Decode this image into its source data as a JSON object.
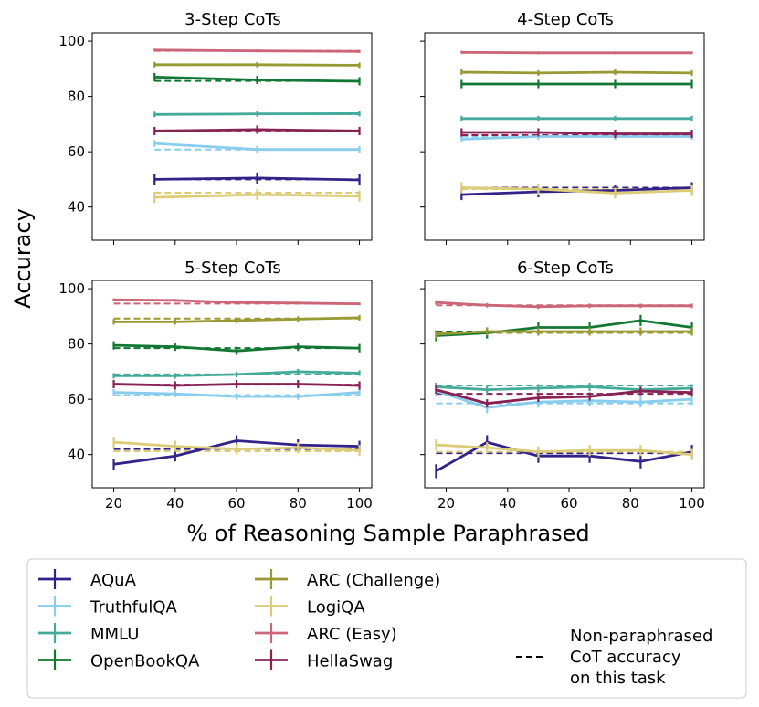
{
  "chart_data": {
    "type": "line",
    "xlabel": "% of Reasoning Sample Paraphrased",
    "ylabel": "Accuracy",
    "ylim": [
      28,
      103
    ],
    "yticks": [
      40,
      60,
      80,
      100
    ],
    "xticks": [
      20,
      40,
      60,
      80,
      100
    ],
    "series_meta": [
      {
        "name": "AQuA",
        "color": "#332288"
      },
      {
        "name": "TruthfulQA",
        "color": "#88CCEE"
      },
      {
        "name": "MMLU",
        "color": "#44AA99"
      },
      {
        "name": "OpenBookQA",
        "color": "#117733"
      },
      {
        "name": "ARC (Challenge)",
        "color": "#999933"
      },
      {
        "name": "LogiQA",
        "color": "#DDCC77"
      },
      {
        "name": "ARC (Easy)",
        "color": "#CC6677"
      },
      {
        "name": "HellaSwag",
        "color": "#882255"
      }
    ],
    "legend_note": [
      "Non-paraphrased",
      "CoT accuracy",
      "on this task"
    ],
    "panels": [
      {
        "title": "3-Step CoTs",
        "x": [
          33.3,
          66.7,
          100
        ],
        "series": [
          {
            "name": "AQuA",
            "values": [
              50.0,
              50.5,
              49.8
            ],
            "baseline": 50.0,
            "err": 2
          },
          {
            "name": "TruthfulQA",
            "values": [
              63.0,
              60.8,
              60.8
            ],
            "baseline": 60.8,
            "err": 1.2
          },
          {
            "name": "MMLU",
            "values": [
              73.5,
              73.7,
              73.8
            ],
            "baseline": 73.6,
            "err": 1
          },
          {
            "name": "OpenBookQA",
            "values": [
              87.0,
              86.0,
              85.5
            ],
            "baseline": 85.6,
            "err": 1.5
          },
          {
            "name": "ARC (Challenge)",
            "values": [
              91.5,
              91.5,
              91.3
            ],
            "baseline": 91.4,
            "err": 1
          },
          {
            "name": "LogiQA",
            "values": [
              43.5,
              44.5,
              44.0
            ],
            "baseline": 45.2,
            "err": 2
          },
          {
            "name": "ARC (Easy)",
            "values": [
              96.8,
              96.5,
              96.3
            ],
            "baseline": 96.5,
            "err": 0.5
          },
          {
            "name": "HellaSwag",
            "values": [
              67.5,
              68.0,
              67.5
            ],
            "baseline": 67.7,
            "err": 1.5
          }
        ]
      },
      {
        "title": "4-Step CoTs",
        "x": [
          25,
          50,
          75,
          100
        ],
        "series": [
          {
            "name": "AQuA",
            "values": [
              44.5,
              45.5,
              46.0,
              47.0
            ],
            "baseline": 47.0,
            "err": 2
          },
          {
            "name": "TruthfulQA",
            "values": [
              64.5,
              65.5,
              65.5,
              65.5
            ],
            "baseline": 65.5,
            "err": 1.2
          },
          {
            "name": "MMLU",
            "values": [
              72.0,
              72.0,
              72.0,
              72.0
            ],
            "baseline": 72.0,
            "err": 1
          },
          {
            "name": "OpenBookQA",
            "values": [
              84.5,
              84.5,
              84.5,
              84.5
            ],
            "baseline": 84.5,
            "err": 1.5
          },
          {
            "name": "ARC (Challenge)",
            "values": [
              88.8,
              88.5,
              88.8,
              88.5
            ],
            "baseline": 88.6,
            "err": 1
          },
          {
            "name": "LogiQA",
            "values": [
              47.0,
              46.5,
              45.0,
              46.0
            ],
            "baseline": 46.5,
            "err": 2
          },
          {
            "name": "ARC (Easy)",
            "values": [
              96.0,
              95.8,
              95.8,
              95.8
            ],
            "baseline": 95.8,
            "err": 0.5
          },
          {
            "name": "HellaSwag",
            "values": [
              67.0,
              67.0,
              66.5,
              66.5
            ],
            "baseline": 66.0,
            "err": 1.5
          }
        ]
      },
      {
        "title": "5-Step CoTs",
        "x": [
          20,
          40,
          60,
          80,
          100
        ],
        "series": [
          {
            "name": "AQuA",
            "values": [
              36.5,
              39.5,
              45.0,
              43.5,
              43.0
            ],
            "baseline": 42.0,
            "err": 2
          },
          {
            "name": "TruthfulQA",
            "values": [
              62.5,
              62.0,
              61.0,
              61.0,
              62.5
            ],
            "baseline": 61.5,
            "err": 1.2
          },
          {
            "name": "MMLU",
            "values": [
              68.5,
              68.5,
              69.0,
              70.0,
              69.5
            ],
            "baseline": 69.0,
            "err": 1
          },
          {
            "name": "OpenBookQA",
            "values": [
              79.5,
              79.0,
              77.5,
              79.0,
              78.5
            ],
            "baseline": 78.5,
            "err": 1.5
          },
          {
            "name": "ARC (Challenge)",
            "values": [
              88.0,
              88.0,
              88.5,
              89.0,
              89.5
            ],
            "baseline": 89.2,
            "err": 1
          },
          {
            "name": "LogiQA",
            "values": [
              44.5,
              43.0,
              42.0,
              42.5,
              41.5
            ],
            "baseline": 41.2,
            "err": 2
          },
          {
            "name": "ARC (Easy)",
            "values": [
              96.0,
              95.8,
              95.0,
              94.8,
              94.5
            ],
            "baseline": 94.6,
            "err": 0.5
          },
          {
            "name": "HellaSwag",
            "values": [
              65.5,
              65.0,
              65.5,
              65.5,
              65.0
            ],
            "baseline": 65.3,
            "err": 1.5
          }
        ]
      },
      {
        "title": "6-Step CoTs",
        "x": [
          16.7,
          33.3,
          50,
          66.7,
          83.3,
          100
        ],
        "series": [
          {
            "name": "AQuA",
            "values": [
              34.0,
              44.5,
              39.5,
              39.5,
              37.5,
              41.0
            ],
            "baseline": 40.5,
            "err": 2.5
          },
          {
            "name": "TruthfulQA",
            "values": [
              63.0,
              57.0,
              59.0,
              59.5,
              59.0,
              60.0
            ],
            "baseline": 58.5,
            "err": 2
          },
          {
            "name": "MMLU",
            "values": [
              64.5,
              63.5,
              64.0,
              64.5,
              63.5,
              64.0
            ],
            "baseline": 65.0,
            "err": 1.5
          },
          {
            "name": "OpenBookQA",
            "values": [
              83.0,
              84.0,
              86.0,
              86.0,
              88.5,
              86.0
            ],
            "baseline": 84.5,
            "err": 2
          },
          {
            "name": "ARC (Challenge)",
            "values": [
              83.5,
              84.5,
              84.5,
              84.5,
              84.5,
              84.5
            ],
            "baseline": 84.0,
            "err": 1.5
          },
          {
            "name": "LogiQA",
            "values": [
              43.5,
              42.5,
              41.0,
              41.5,
              41.5,
              40.0
            ],
            "baseline": 41.0,
            "err": 2
          },
          {
            "name": "ARC (Easy)",
            "values": [
              95.0,
              94.0,
              93.5,
              93.8,
              93.8,
              93.8
            ],
            "baseline": 94.0,
            "err": 0.8
          },
          {
            "name": "HellaSwag",
            "values": [
              63.5,
              58.5,
              60.5,
              61.0,
              63.0,
              62.5
            ],
            "baseline": 62.0,
            "err": 1.5
          }
        ]
      }
    ]
  }
}
